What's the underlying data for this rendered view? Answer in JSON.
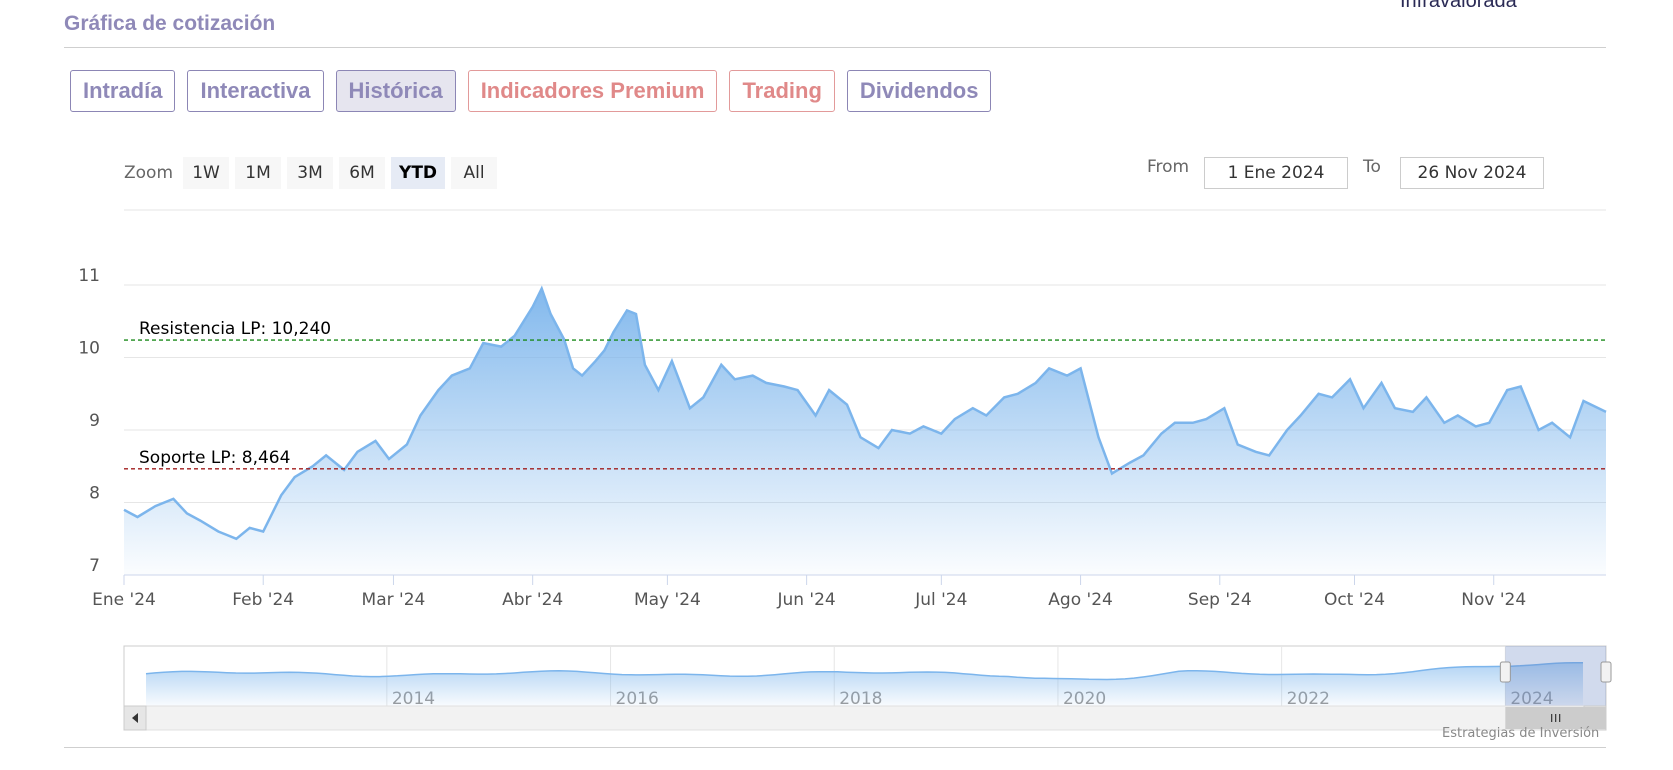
{
  "header": {
    "cut_text": "Infravalorada",
    "title": "Gráfica de cotización"
  },
  "tabs": [
    {
      "label": "Intradía",
      "active": false,
      "premium": false
    },
    {
      "label": "Interactiva",
      "active": false,
      "premium": false
    },
    {
      "label": "Histórica",
      "active": true,
      "premium": false
    },
    {
      "label": "Indicadores Premium",
      "active": false,
      "premium": true
    },
    {
      "label": "Trading",
      "active": false,
      "premium": true
    },
    {
      "label": "Dividendos",
      "active": false,
      "premium": false
    }
  ],
  "zoom": {
    "label": "Zoom",
    "buttons": [
      "1W",
      "1M",
      "3M",
      "6M",
      "YTD",
      "All"
    ],
    "selected": "YTD"
  },
  "range": {
    "from_label": "From",
    "from_value": "1 Ene 2024",
    "to_label": "To",
    "to_value": "26 Nov 2024"
  },
  "colors": {
    "line": "#7cb5ec",
    "resistance": "#1a8a1a",
    "support": "#a11d1d",
    "tab_text": "#8f89b8",
    "tab_premium": "#e08989"
  },
  "chart_data": {
    "type": "area",
    "title": "",
    "xlabel": "",
    "ylabel": "",
    "ylim": [
      7,
      11
    ],
    "y_ticks": [
      "7",
      "8",
      "9",
      "10",
      "11"
    ],
    "x_ticks": [
      "Ene '24",
      "Feb '24",
      "Mar '24",
      "Abr '24",
      "May '24",
      "Jun '24",
      "Jul '24",
      "Ago '24",
      "Sep '24",
      "Oct '24",
      "Nov '24"
    ],
    "grid": true,
    "series": [
      {
        "x": [
          "2024-01-01",
          "2024-01-04",
          "2024-01-08",
          "2024-01-12",
          "2024-01-15",
          "2024-01-18",
          "2024-01-22",
          "2024-01-24",
          "2024-01-26",
          "2024-01-29",
          "2024-02-01",
          "2024-02-05",
          "2024-02-08",
          "2024-02-12",
          "2024-02-15",
          "2024-02-19",
          "2024-02-22",
          "2024-02-26",
          "2024-02-29",
          "2024-03-04",
          "2024-03-07",
          "2024-03-11",
          "2024-03-14",
          "2024-03-18",
          "2024-03-21",
          "2024-03-25",
          "2024-03-28",
          "2024-04-01",
          "2024-04-03",
          "2024-04-05",
          "2024-04-08",
          "2024-04-10",
          "2024-04-12",
          "2024-04-15",
          "2024-04-17",
          "2024-04-19",
          "2024-04-22",
          "2024-04-24",
          "2024-04-26",
          "2024-04-29",
          "2024-05-02",
          "2024-05-06",
          "2024-05-09",
          "2024-05-13",
          "2024-05-16",
          "2024-05-20",
          "2024-05-23",
          "2024-05-27",
          "2024-05-30",
          "2024-06-03",
          "2024-06-06",
          "2024-06-10",
          "2024-06-13",
          "2024-06-17",
          "2024-06-20",
          "2024-06-24",
          "2024-06-27",
          "2024-07-01",
          "2024-07-04",
          "2024-07-08",
          "2024-07-11",
          "2024-07-15",
          "2024-07-18",
          "2024-07-22",
          "2024-07-25",
          "2024-07-29",
          "2024-08-01",
          "2024-08-05",
          "2024-08-08",
          "2024-08-12",
          "2024-08-15",
          "2024-08-19",
          "2024-08-22",
          "2024-08-26",
          "2024-08-29",
          "2024-09-02",
          "2024-09-05",
          "2024-09-09",
          "2024-09-12",
          "2024-09-16",
          "2024-09-19",
          "2024-09-23",
          "2024-09-26",
          "2024-09-30",
          "2024-10-03",
          "2024-10-07",
          "2024-10-10",
          "2024-10-14",
          "2024-10-17",
          "2024-10-21",
          "2024-10-24",
          "2024-10-28",
          "2024-10-31",
          "2024-11-04",
          "2024-11-07",
          "2024-11-11",
          "2024-11-14",
          "2024-11-18",
          "2024-11-21",
          "2024-11-26"
        ],
        "values": [
          7.9,
          7.8,
          7.95,
          8.05,
          7.85,
          7.75,
          7.6,
          7.55,
          7.5,
          7.65,
          7.6,
          8.1,
          8.35,
          8.5,
          8.65,
          8.45,
          8.7,
          8.85,
          8.6,
          8.8,
          9.2,
          9.55,
          9.75,
          9.85,
          10.2,
          10.15,
          10.3,
          10.7,
          10.95,
          10.6,
          10.25,
          9.85,
          9.75,
          9.95,
          10.1,
          10.35,
          10.65,
          10.6,
          9.9,
          9.55,
          9.95,
          9.3,
          9.45,
          9.9,
          9.7,
          9.75,
          9.65,
          9.6,
          9.55,
          9.2,
          9.55,
          9.35,
          8.9,
          8.75,
          9.0,
          8.95,
          9.05,
          8.95,
          9.15,
          9.3,
          9.2,
          9.45,
          9.5,
          9.65,
          9.85,
          9.75,
          9.85,
          8.9,
          8.4,
          8.55,
          8.65,
          8.95,
          9.1,
          9.1,
          9.15,
          9.3,
          8.8,
          8.7,
          8.65,
          9.0,
          9.2,
          9.5,
          9.45,
          9.7,
          9.3,
          9.65,
          9.3,
          9.25,
          9.45,
          9.1,
          9.2,
          9.05,
          9.1,
          9.55,
          9.6,
          9.0,
          9.1,
          8.9,
          9.4,
          9.25
        ]
      }
    ],
    "annotations": [
      {
        "label": "Resistencia LP: 10,240",
        "value": 10.24
      },
      {
        "label": "Soporte LP: 8,464",
        "value": 8.464
      }
    ],
    "navigator": {
      "year_labels": [
        "2014",
        "2016",
        "2018",
        "2020",
        "2022",
        "2024"
      ]
    }
  },
  "credit": "Estrategias de Inversión"
}
